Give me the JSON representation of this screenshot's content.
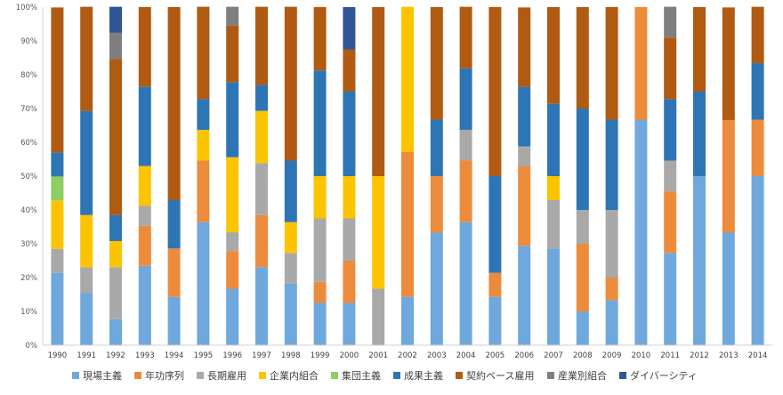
{
  "chart_data": {
    "type": "bar",
    "stacked": true,
    "categories": [
      "1990",
      "1991",
      "1992",
      "1993",
      "1994",
      "1995",
      "1996",
      "1997",
      "1998",
      "1999",
      "2000",
      "2001",
      "2002",
      "2003",
      "2004",
      "2005",
      "2006",
      "2007",
      "2008",
      "2009",
      "2010",
      "2011",
      "2012",
      "2013",
      "2014"
    ],
    "ylim": [
      0,
      1
    ],
    "yticks": [
      "0%",
      "10%",
      "20%",
      "30%",
      "40%",
      "50%",
      "60%",
      "70%",
      "80%",
      "90%",
      "100%"
    ],
    "grid": false,
    "legend_position": "bottom",
    "series": [
      {
        "name": "現場主義",
        "color": "#6fa8dc",
        "values": [
          0.214,
          0.154,
          0.077,
          0.235,
          0.143,
          0.364,
          0.167,
          0.231,
          0.182,
          0.125,
          0.125,
          0.0,
          0.143,
          0.333,
          0.364,
          0.143,
          0.294,
          0.286,
          0.1,
          0.133,
          0.667,
          0.273,
          0.5,
          0.333,
          0.5
        ]
      },
      {
        "name": "年功序列",
        "color": "#ed8b3c",
        "values": [
          0.0,
          0.0,
          0.0,
          0.118,
          0.143,
          0.182,
          0.111,
          0.154,
          0.0,
          0.0625,
          0.125,
          0.0,
          0.429,
          0.167,
          0.182,
          0.071,
          0.235,
          0.0,
          0.2,
          0.067,
          0.333,
          0.182,
          0.0,
          0.333,
          0.167
        ]
      },
      {
        "name": "長期雇用",
        "color": "#a9a9a9",
        "values": [
          0.071,
          0.077,
          0.154,
          0.059,
          0.0,
          0.0,
          0.056,
          0.154,
          0.091,
          0.1875,
          0.125,
          0.167,
          0.0,
          0.0,
          0.091,
          0.0,
          0.059,
          0.143,
          0.1,
          0.2,
          0.0,
          0.091,
          0.0,
          0.0,
          0.0
        ]
      },
      {
        "name": "企業内組合",
        "color": "#fcc400",
        "values": [
          0.143,
          0.154,
          0.077,
          0.118,
          0.0,
          0.091,
          0.222,
          0.154,
          0.091,
          0.125,
          0.125,
          0.333,
          0.429,
          0.0,
          0.0,
          0.0,
          0.0,
          0.071,
          0.0,
          0.0,
          0.0,
          0.0,
          0.0,
          0.0,
          0.0
        ]
      },
      {
        "name": "集団主義",
        "color": "#8fce60",
        "values": [
          0.071,
          0.0,
          0.0,
          0.0,
          0.0,
          0.0,
          0.0,
          0.0,
          0.0,
          0.0,
          0.0,
          0.0,
          0.0,
          0.0,
          0.0,
          0.0,
          0.0,
          0.0,
          0.0,
          0.0,
          0.0,
          0.0,
          0.0,
          0.0,
          0.0
        ]
      },
      {
        "name": "成果主義",
        "color": "#2e75b6",
        "values": [
          0.071,
          0.308,
          0.077,
          0.235,
          0.143,
          0.091,
          0.222,
          0.077,
          0.182,
          0.3125,
          0.25,
          0.0,
          0.0,
          0.167,
          0.182,
          0.286,
          0.176,
          0.214,
          0.3,
          0.267,
          0.0,
          0.182,
          0.25,
          0.0,
          0.167
        ]
      },
      {
        "name": "契約ベース雇用",
        "color": "#b05a12",
        "values": [
          0.429,
          0.308,
          0.462,
          0.235,
          0.571,
          0.273,
          0.167,
          0.231,
          0.455,
          0.1875,
          0.125,
          0.5,
          0.0,
          0.333,
          0.182,
          0.5,
          0.235,
          0.286,
          0.3,
          0.333,
          0.0,
          0.182,
          0.25,
          0.333,
          0.167
        ]
      },
      {
        "name": "産業別組合",
        "color": "#7f7f7f",
        "values": [
          0.0,
          0.0,
          0.077,
          0.0,
          0.0,
          0.0,
          0.056,
          0.0,
          0.0,
          0.0,
          0.0,
          0.0,
          0.0,
          0.0,
          0.0,
          0.0,
          0.0,
          0.0,
          0.0,
          0.0,
          0.0,
          0.091,
          0.0,
          0.0,
          0.0
        ]
      },
      {
        "name": "ダイバーシティ",
        "color": "#2f5597",
        "values": [
          0.0,
          0.0,
          0.077,
          0.0,
          0.0,
          0.0,
          0.0,
          0.0,
          0.0,
          0.0,
          0.125,
          0.0,
          0.0,
          0.0,
          0.0,
          0.0,
          0.0,
          0.0,
          0.0,
          0.0,
          0.0,
          0.0,
          0.0,
          0.0,
          0.0
        ]
      }
    ]
  }
}
